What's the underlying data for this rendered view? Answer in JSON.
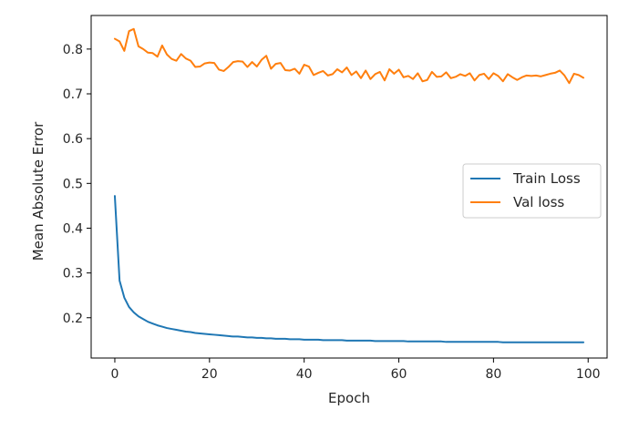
{
  "chart_data": {
    "type": "line",
    "xlabel": "Epoch",
    "ylabel": "Mean Absolute Error",
    "xlim": [
      -5,
      104
    ],
    "ylim": [
      0.11,
      0.875
    ],
    "xticks": [
      0,
      20,
      40,
      60,
      80,
      100
    ],
    "yticks": [
      0.2,
      0.3,
      0.4,
      0.5,
      0.6,
      0.7,
      0.8
    ],
    "ytick_labels": [
      "0.2",
      "0.3",
      "0.4",
      "0.5",
      "0.6",
      "0.7",
      "0.8"
    ],
    "grid": false,
    "legend_position": "center-right",
    "series": [
      {
        "name": "Train Loss",
        "color": "#1f77b4",
        "x": [
          0,
          1,
          2,
          3,
          4,
          5,
          6,
          7,
          8,
          9,
          10,
          11,
          12,
          13,
          14,
          15,
          16,
          17,
          18,
          19,
          20,
          21,
          22,
          23,
          24,
          25,
          26,
          27,
          28,
          29,
          30,
          31,
          32,
          33,
          34,
          35,
          36,
          37,
          38,
          39,
          40,
          41,
          42,
          43,
          44,
          45,
          46,
          47,
          48,
          49,
          50,
          51,
          52,
          53,
          54,
          55,
          56,
          57,
          58,
          59,
          60,
          61,
          62,
          63,
          64,
          65,
          66,
          67,
          68,
          69,
          70,
          71,
          72,
          73,
          74,
          75,
          76,
          77,
          78,
          79,
          80,
          81,
          82,
          83,
          84,
          85,
          86,
          87,
          88,
          89,
          90,
          91,
          92,
          93,
          94,
          95,
          96,
          97,
          98,
          99
        ],
        "values": [
          0.472,
          0.283,
          0.245,
          0.224,
          0.212,
          0.203,
          0.197,
          0.191,
          0.187,
          0.183,
          0.18,
          0.177,
          0.175,
          0.173,
          0.171,
          0.169,
          0.168,
          0.166,
          0.165,
          0.164,
          0.163,
          0.162,
          0.161,
          0.16,
          0.159,
          0.158,
          0.158,
          0.157,
          0.156,
          0.156,
          0.155,
          0.155,
          0.154,
          0.154,
          0.153,
          0.153,
          0.153,
          0.152,
          0.152,
          0.152,
          0.151,
          0.151,
          0.151,
          0.151,
          0.15,
          0.15,
          0.15,
          0.15,
          0.15,
          0.149,
          0.149,
          0.149,
          0.149,
          0.149,
          0.149,
          0.148,
          0.148,
          0.148,
          0.148,
          0.148,
          0.148,
          0.148,
          0.147,
          0.147,
          0.147,
          0.147,
          0.147,
          0.147,
          0.147,
          0.147,
          0.146,
          0.146,
          0.146,
          0.146,
          0.146,
          0.146,
          0.146,
          0.146,
          0.146,
          0.146,
          0.146,
          0.146,
          0.145,
          0.145,
          0.145,
          0.145,
          0.145,
          0.145,
          0.145,
          0.145,
          0.145,
          0.145,
          0.145,
          0.145,
          0.145,
          0.145,
          0.145,
          0.145,
          0.145,
          0.145
        ]
      },
      {
        "name": "Val loss",
        "color": "#ff7f0e",
        "x": [
          0,
          1,
          2,
          3,
          4,
          5,
          6,
          7,
          8,
          9,
          10,
          11,
          12,
          13,
          14,
          15,
          16,
          17,
          18,
          19,
          20,
          21,
          22,
          23,
          24,
          25,
          26,
          27,
          28,
          29,
          30,
          31,
          32,
          33,
          34,
          35,
          36,
          37,
          38,
          39,
          40,
          41,
          42,
          43,
          44,
          45,
          46,
          47,
          48,
          49,
          50,
          51,
          52,
          53,
          54,
          55,
          56,
          57,
          58,
          59,
          60,
          61,
          62,
          63,
          64,
          65,
          66,
          67,
          68,
          69,
          70,
          71,
          72,
          73,
          74,
          75,
          76,
          77,
          78,
          79,
          80,
          81,
          82,
          83,
          84,
          85,
          86,
          87,
          88,
          89,
          90,
          91,
          92,
          93,
          94,
          95,
          96,
          97,
          98,
          99
        ],
        "values": [
          0.823,
          0.817,
          0.796,
          0.84,
          0.845,
          0.806,
          0.8,
          0.792,
          0.791,
          0.783,
          0.808,
          0.788,
          0.778,
          0.774,
          0.789,
          0.779,
          0.774,
          0.76,
          0.761,
          0.768,
          0.77,
          0.769,
          0.754,
          0.751,
          0.76,
          0.771,
          0.773,
          0.772,
          0.76,
          0.771,
          0.761,
          0.776,
          0.785,
          0.756,
          0.767,
          0.769,
          0.753,
          0.752,
          0.756,
          0.745,
          0.765,
          0.761,
          0.742,
          0.747,
          0.751,
          0.741,
          0.744,
          0.755,
          0.748,
          0.759,
          0.742,
          0.75,
          0.735,
          0.752,
          0.733,
          0.744,
          0.749,
          0.73,
          0.755,
          0.745,
          0.754,
          0.737,
          0.74,
          0.733,
          0.746,
          0.728,
          0.731,
          0.749,
          0.738,
          0.739,
          0.748,
          0.735,
          0.738,
          0.744,
          0.74,
          0.746,
          0.73,
          0.742,
          0.745,
          0.733,
          0.746,
          0.74,
          0.728,
          0.744,
          0.737,
          0.731,
          0.737,
          0.741,
          0.74,
          0.741,
          0.739,
          0.742,
          0.745,
          0.747,
          0.752,
          0.741,
          0.724,
          0.745,
          0.742,
          0.736
        ]
      }
    ]
  }
}
